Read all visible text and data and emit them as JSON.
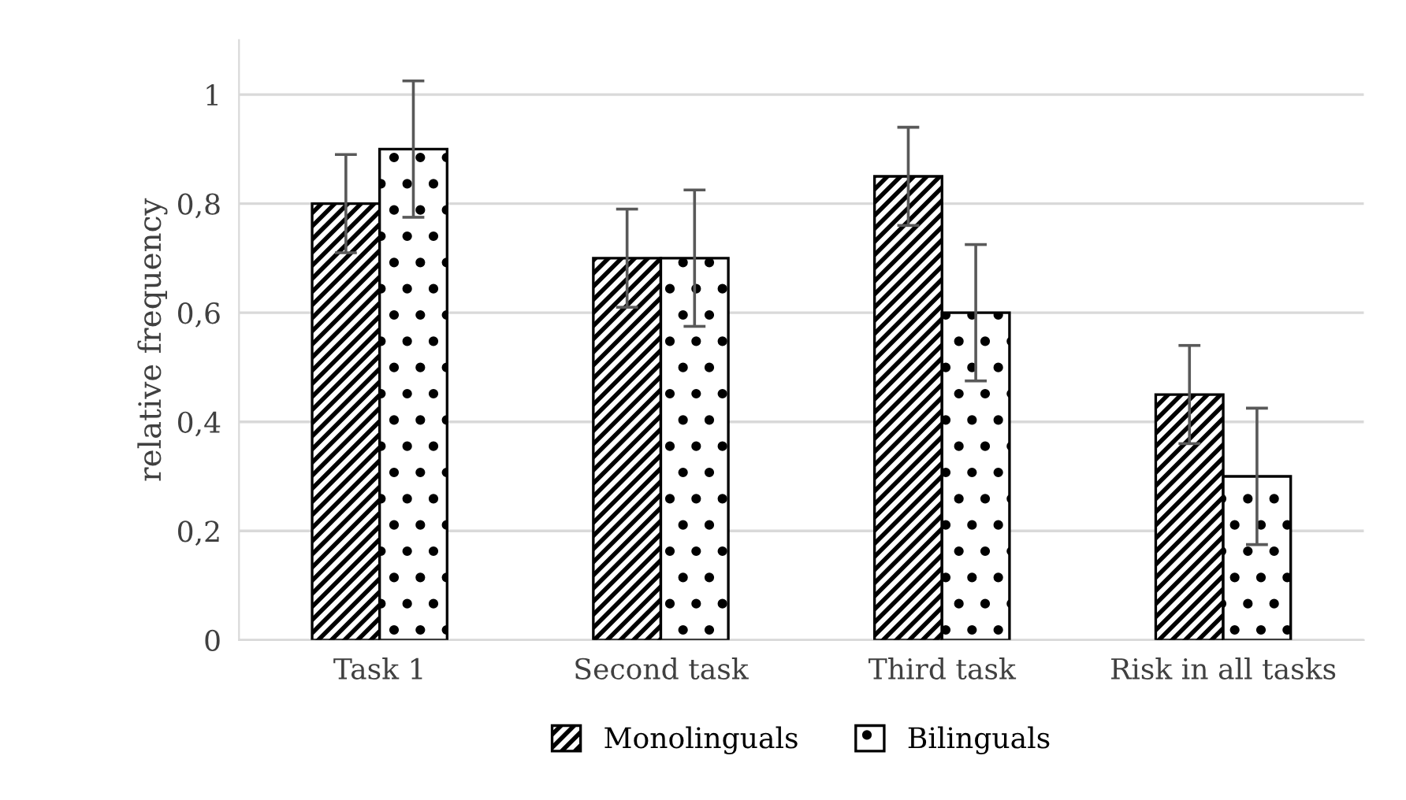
{
  "chart_data": {
    "type": "bar",
    "ylabel": "relative frequency",
    "categories": [
      "Task 1",
      "Second task",
      "Third task",
      "Risk in all tasks"
    ],
    "series": [
      {
        "name": "Monolinguals",
        "color": "#000000",
        "values": [
          0.8,
          0.7,
          0.85,
          0.45
        ],
        "errors": [
          0.09,
          0.09,
          0.09,
          0.09
        ]
      },
      {
        "name": "Bilinguals",
        "color": "#000000",
        "values": [
          0.9,
          0.7,
          0.6,
          0.3
        ],
        "errors": [
          0.125,
          0.125,
          0.125,
          0.125
        ]
      }
    ],
    "ylim": [
      0,
      1.1
    ],
    "yticks": [
      0,
      {
        "value": 0.2,
        "label": "0,2"
      },
      {
        "value": 0.4,
        "label": "0,4"
      },
      {
        "value": 0.6,
        "label": "0,6"
      },
      {
        "value": 0.8,
        "label": "0,8"
      },
      1
    ],
    "grid": "y",
    "legend": "bottom"
  }
}
